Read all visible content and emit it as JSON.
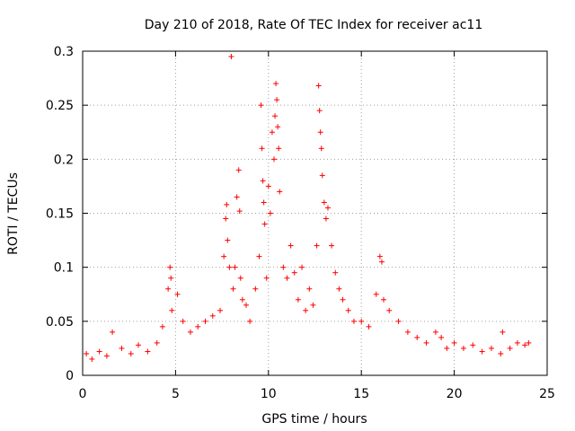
{
  "chart_data": {
    "type": "scatter",
    "title": "Day 210 of 2018, Rate Of TEC Index for receiver ac11",
    "xlabel": "GPS time / hours",
    "ylabel": "ROTI / TECUs",
    "xlim": [
      0,
      25
    ],
    "ylim": [
      0,
      0.3
    ],
    "xticks": [
      0,
      5,
      10,
      15,
      20,
      25
    ],
    "xtick_labels": [
      "0",
      "5",
      "10",
      "15",
      "20",
      "25"
    ],
    "yticks": [
      0,
      0.05,
      0.1,
      0.15,
      0.2,
      0.25,
      0.3
    ],
    "ytick_labels": [
      "0",
      "0.05",
      "0.1",
      "0.15",
      "0.2",
      "0.25",
      "0.3"
    ],
    "grid": true,
    "marker": "+",
    "color": "#ff0000",
    "series": [
      {
        "name": "ROTI",
        "x": [
          0.2,
          0.5,
          0.9,
          1.3,
          1.6,
          2.1,
          2.6,
          3.0,
          3.5,
          4.0,
          4.3,
          4.6,
          4.7,
          4.75,
          4.8,
          5.1,
          5.4,
          5.8,
          6.2,
          6.6,
          7.0,
          7.4,
          7.6,
          7.7,
          7.75,
          7.8,
          7.9,
          8.0,
          8.1,
          8.2,
          8.3,
          8.4,
          8.45,
          8.5,
          8.6,
          8.8,
          9.0,
          9.3,
          9.5,
          9.6,
          9.65,
          9.7,
          9.75,
          9.8,
          9.9,
          10.0,
          10.1,
          10.2,
          10.3,
          10.35,
          10.4,
          10.45,
          10.5,
          10.55,
          10.6,
          10.8,
          11.0,
          11.2,
          11.4,
          11.6,
          11.8,
          12.0,
          12.2,
          12.4,
          12.6,
          12.7,
          12.75,
          12.8,
          12.85,
          12.9,
          13.0,
          13.1,
          13.2,
          13.4,
          13.6,
          13.8,
          14.0,
          14.3,
          14.6,
          15.0,
          15.4,
          15.8,
          16.0,
          16.1,
          16.2,
          16.5,
          17.0,
          17.5,
          18.0,
          18.5,
          19.0,
          19.3,
          19.6,
          20.0,
          20.5,
          21.0,
          21.5,
          22.0,
          22.5,
          22.6,
          23.0,
          23.4,
          23.8,
          24.0
        ],
        "y": [
          0.02,
          0.015,
          0.022,
          0.018,
          0.04,
          0.025,
          0.02,
          0.028,
          0.022,
          0.03,
          0.045,
          0.08,
          0.1,
          0.09,
          0.06,
          0.075,
          0.05,
          0.04,
          0.045,
          0.05,
          0.055,
          0.06,
          0.11,
          0.145,
          0.158,
          0.125,
          0.1,
          0.295,
          0.08,
          0.1,
          0.165,
          0.19,
          0.152,
          0.09,
          0.07,
          0.065,
          0.05,
          0.08,
          0.11,
          0.25,
          0.21,
          0.18,
          0.16,
          0.14,
          0.09,
          0.175,
          0.15,
          0.225,
          0.2,
          0.24,
          0.27,
          0.255,
          0.23,
          0.21,
          0.17,
          0.1,
          0.09,
          0.12,
          0.095,
          0.07,
          0.1,
          0.06,
          0.08,
          0.065,
          0.12,
          0.268,
          0.245,
          0.225,
          0.21,
          0.185,
          0.16,
          0.145,
          0.155,
          0.12,
          0.095,
          0.08,
          0.07,
          0.06,
          0.05,
          0.05,
          0.045,
          0.075,
          0.11,
          0.105,
          0.07,
          0.06,
          0.05,
          0.04,
          0.035,
          0.03,
          0.04,
          0.035,
          0.025,
          0.03,
          0.025,
          0.028,
          0.022,
          0.025,
          0.02,
          0.04,
          0.025,
          0.03,
          0.028,
          0.03
        ]
      }
    ]
  }
}
